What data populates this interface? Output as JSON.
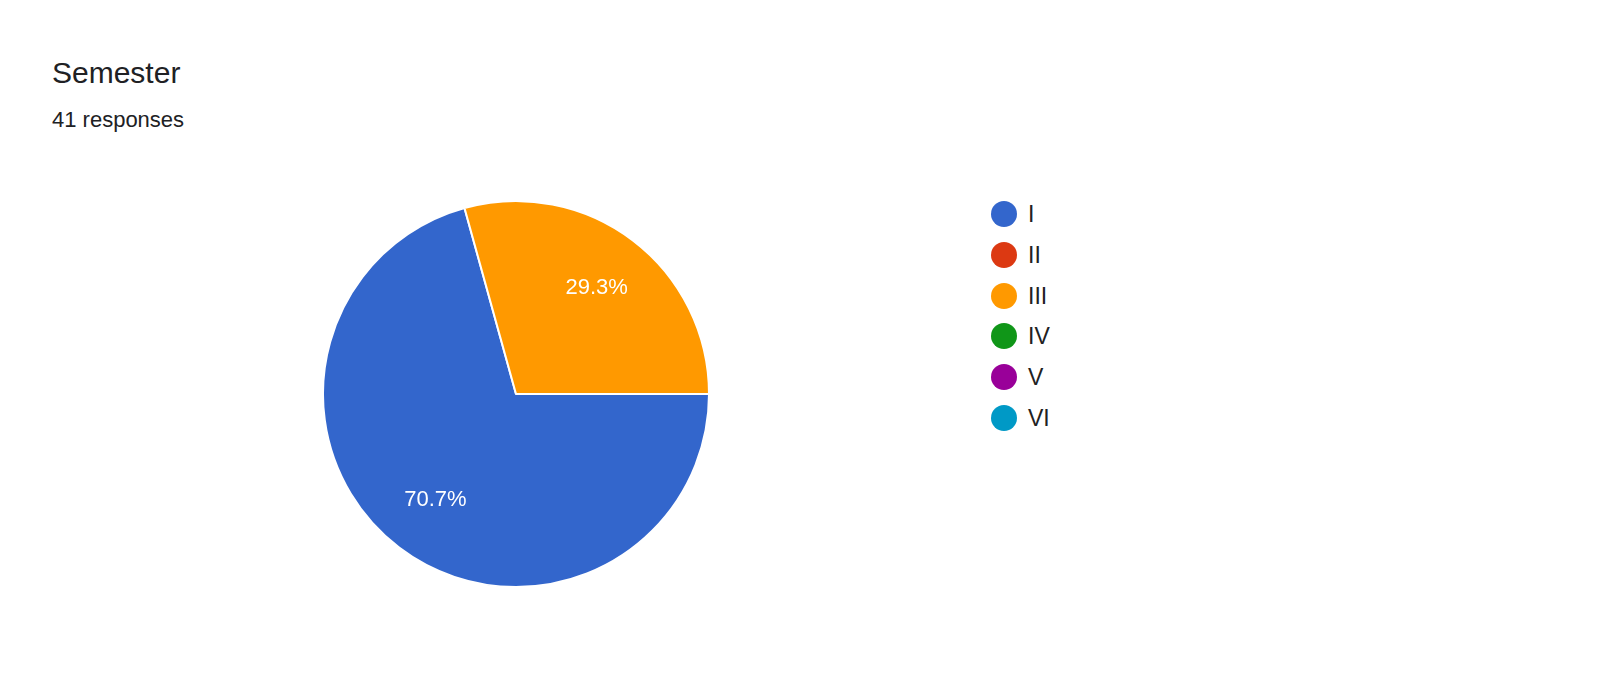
{
  "chart_data": {
    "type": "pie",
    "title": "Semester",
    "subtitle": "41 responses",
    "categories": [
      "I",
      "II",
      "III",
      "IV",
      "V",
      "VI"
    ],
    "values": [
      70.7,
      0,
      29.3,
      0,
      0,
      0
    ],
    "value_labels": [
      "70.7%",
      null,
      "29.3%",
      null,
      null,
      null
    ],
    "colors": [
      "#3366cc",
      "#dc3912",
      "#ff9900",
      "#109618",
      "#990099",
      "#0099c6"
    ],
    "data_labels": true,
    "legend": "right"
  }
}
